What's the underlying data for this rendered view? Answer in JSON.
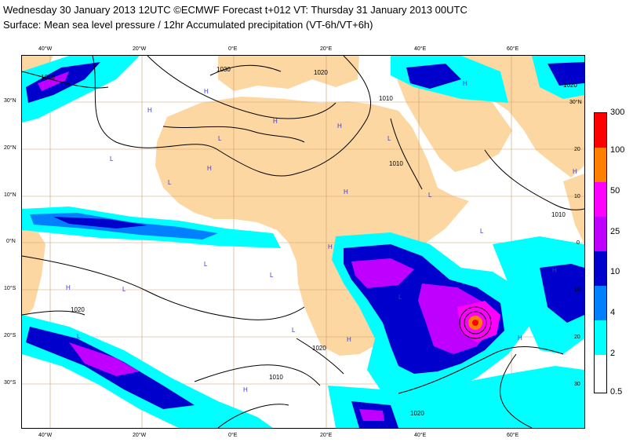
{
  "header": {
    "line1": "Wednesday 30 January 2013 12UTC ©ECMWF Forecast t+012 VT: Thursday 31 January 2013 00UTC",
    "line2": "Surface: Mean sea level pressure / 12hr Accumulated precipitation (VT-6h/VT+6h)"
  },
  "map": {
    "lon_ticks": [
      "40°W",
      "20°W",
      "0°E",
      "20°E",
      "40°E",
      "60°E"
    ],
    "lat_ticks": [
      "30°N",
      "20°N",
      "10°N",
      "0°N",
      "10°S",
      "20°S",
      "30°S"
    ],
    "lat_ticks_right": [
      "30°N",
      "20",
      "10",
      "0",
      "10",
      "20",
      "30"
    ],
    "colors": {
      "land": "#fcd7a1",
      "sea": "#ffffff",
      "grid": "#c9a070",
      "isobar": "#000000"
    },
    "isobar_labels": [
      "1010",
      "1030",
      "1020",
      "1010",
      "1010",
      "1020",
      "1010",
      "1020",
      "1010",
      "1020",
      "1020"
    ],
    "pressure_markers": [
      "H",
      "H",
      "H",
      "L",
      "H",
      "H",
      "L",
      "L",
      "H",
      "H",
      "L",
      "L",
      "H",
      "L",
      "L",
      "L",
      "H",
      "H",
      "L",
      "H",
      "L",
      "H",
      "H",
      "L",
      "L",
      "H"
    ]
  },
  "legend": {
    "levels": [
      {
        "label": "300",
        "color": "#ff0000"
      },
      {
        "label": "100",
        "color": "#ff8000"
      },
      {
        "label": "50",
        "color": "#ff00ff"
      },
      {
        "label": "25",
        "color": "#c000ff"
      },
      {
        "label": "10",
        "color": "#0000cc"
      },
      {
        "label": "4",
        "color": "#0080ff"
      },
      {
        "label": "2",
        "color": "#00ffff"
      },
      {
        "label": "0.5",
        "color": ""
      }
    ]
  }
}
